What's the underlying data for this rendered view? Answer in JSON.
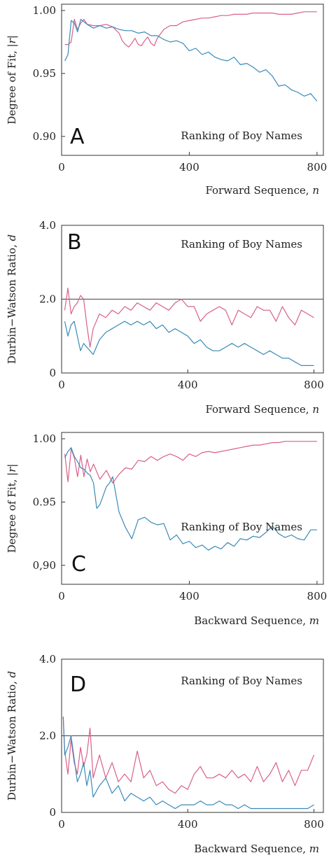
{
  "chart_data": [
    {
      "type": "line",
      "panel_label": "A",
      "annotation": "Ranking of Boy Names",
      "xlabel": "Forward Sequence,",
      "xlabel_var": "n",
      "ylabel": "Degree of Fit,",
      "ylabel_var": "|r|",
      "xlim": [
        0,
        820
      ],
      "ylim": [
        0.885,
        1.005
      ],
      "xticks": [
        0,
        400,
        800
      ],
      "yticks": [
        0.9,
        0.95,
        1.0
      ],
      "ytick_labels": [
        "0.90",
        "0.95",
        "1.00"
      ],
      "reference_line": null,
      "series": [
        {
          "color": "#d9608a",
          "x": [
            10,
            20,
            30,
            40,
            50,
            60,
            70,
            80,
            100,
            120,
            140,
            160,
            180,
            190,
            200,
            210,
            220,
            230,
            240,
            250,
            260,
            270,
            280,
            290,
            300,
            320,
            340,
            360,
            380,
            400,
            420,
            440,
            460,
            480,
            500,
            520,
            540,
            560,
            580,
            600,
            620,
            640,
            660,
            680,
            700,
            720,
            740,
            760,
            780,
            800
          ],
          "y": [
            0.973,
            0.973,
            0.975,
            0.993,
            0.985,
            0.99,
            0.993,
            0.989,
            0.988,
            0.988,
            0.989,
            0.987,
            0.982,
            0.976,
            0.973,
            0.971,
            0.974,
            0.978,
            0.973,
            0.972,
            0.976,
            0.979,
            0.974,
            0.972,
            0.978,
            0.985,
            0.988,
            0.988,
            0.991,
            0.992,
            0.993,
            0.994,
            0.994,
            0.995,
            0.996,
            0.996,
            0.997,
            0.997,
            0.997,
            0.998,
            0.998,
            0.998,
            0.998,
            0.997,
            0.997,
            0.997,
            0.998,
            0.999,
            0.999,
            0.999
          ]
        },
        {
          "color": "#3a8ab8",
          "x": [
            10,
            20,
            30,
            40,
            50,
            60,
            70,
            80,
            100,
            120,
            140,
            160,
            180,
            200,
            220,
            240,
            260,
            280,
            300,
            320,
            340,
            360,
            380,
            400,
            420,
            440,
            460,
            480,
            500,
            520,
            540,
            560,
            580,
            600,
            620,
            640,
            660,
            680,
            700,
            720,
            740,
            760,
            780,
            800
          ],
          "y": [
            0.96,
            0.965,
            0.992,
            0.99,
            0.983,
            0.993,
            0.991,
            0.989,
            0.986,
            0.988,
            0.986,
            0.987,
            0.985,
            0.984,
            0.984,
            0.982,
            0.983,
            0.98,
            0.98,
            0.977,
            0.975,
            0.976,
            0.974,
            0.968,
            0.97,
            0.965,
            0.967,
            0.963,
            0.961,
            0.96,
            0.963,
            0.957,
            0.958,
            0.955,
            0.951,
            0.953,
            0.948,
            0.94,
            0.941,
            0.937,
            0.935,
            0.932,
            0.934,
            0.928
          ]
        }
      ]
    },
    {
      "type": "line",
      "panel_label": "B",
      "annotation": "Ranking of Boy Names",
      "xlabel": "Forward Sequence,",
      "xlabel_var": "n",
      "ylabel": "Durbin−Watson Ratio,",
      "ylabel_var": "d",
      "xlim": [
        0,
        830
      ],
      "ylim": [
        0,
        4.0
      ],
      "xticks": [
        0,
        400,
        800
      ],
      "yticks": [
        0,
        2.0,
        4.0
      ],
      "ytick_labels": [
        "0",
        "2.0",
        "4.0"
      ],
      "reference_line": 2.0,
      "series": [
        {
          "color": "#d9608a",
          "x": [
            10,
            20,
            30,
            40,
            50,
            60,
            70,
            80,
            90,
            100,
            120,
            140,
            160,
            180,
            200,
            220,
            240,
            260,
            280,
            300,
            320,
            340,
            360,
            380,
            400,
            420,
            440,
            460,
            480,
            500,
            520,
            540,
            560,
            580,
            600,
            620,
            640,
            660,
            680,
            700,
            720,
            740,
            760,
            780,
            800
          ],
          "y": [
            1.7,
            2.3,
            1.6,
            1.8,
            1.9,
            2.1,
            2.0,
            1.3,
            0.7,
            1.2,
            1.6,
            1.5,
            1.7,
            1.6,
            1.8,
            1.7,
            1.9,
            1.8,
            1.7,
            1.9,
            1.8,
            1.7,
            1.9,
            2.0,
            1.8,
            1.8,
            1.4,
            1.6,
            1.7,
            1.8,
            1.7,
            1.3,
            1.7,
            1.6,
            1.5,
            1.8,
            1.7,
            1.7,
            1.4,
            1.8,
            1.5,
            1.3,
            1.7,
            1.6,
            1.5
          ]
        },
        {
          "color": "#3a8ab8",
          "x": [
            10,
            20,
            30,
            40,
            50,
            60,
            70,
            80,
            90,
            100,
            120,
            140,
            160,
            180,
            200,
            220,
            240,
            260,
            280,
            300,
            320,
            340,
            360,
            380,
            400,
            420,
            440,
            460,
            480,
            500,
            520,
            540,
            560,
            580,
            600,
            620,
            640,
            660,
            680,
            700,
            720,
            740,
            760,
            780,
            800
          ],
          "y": [
            1.4,
            1.0,
            1.3,
            1.4,
            1.0,
            0.6,
            0.8,
            0.7,
            0.6,
            0.5,
            0.9,
            1.1,
            1.2,
            1.3,
            1.4,
            1.3,
            1.4,
            1.3,
            1.4,
            1.2,
            1.3,
            1.1,
            1.2,
            1.1,
            1.0,
            0.8,
            0.9,
            0.7,
            0.6,
            0.6,
            0.7,
            0.8,
            0.7,
            0.8,
            0.7,
            0.6,
            0.5,
            0.6,
            0.5,
            0.4,
            0.4,
            0.3,
            0.2,
            0.2,
            0.2
          ]
        }
      ]
    },
    {
      "type": "line",
      "panel_label": "C",
      "annotation": "Ranking of Boy Names",
      "xlabel": "Backward Sequence,",
      "xlabel_var": "m",
      "ylabel": "Degree of Fit,",
      "ylabel_var": "|r|",
      "xlim": [
        0,
        820
      ],
      "ylim": [
        0.885,
        1.005
      ],
      "xticks": [
        0,
        400,
        800
      ],
      "yticks": [
        0.9,
        0.95,
        1.0
      ],
      "ytick_labels": [
        "0,90",
        "0.95",
        "1.00"
      ],
      "reference_line": null,
      "series": [
        {
          "color": "#d9608a",
          "x": [
            10,
            20,
            30,
            40,
            50,
            60,
            70,
            80,
            90,
            100,
            120,
            140,
            160,
            180,
            200,
            220,
            240,
            260,
            280,
            300,
            320,
            340,
            360,
            380,
            400,
            420,
            440,
            460,
            480,
            500,
            520,
            540,
            560,
            580,
            600,
            620,
            640,
            660,
            680,
            700,
            720,
            740,
            760,
            780,
            800
          ],
          "y": [
            0.988,
            0.966,
            0.992,
            0.985,
            0.97,
            0.987,
            0.97,
            0.984,
            0.974,
            0.98,
            0.968,
            0.975,
            0.965,
            0.972,
            0.977,
            0.976,
            0.983,
            0.982,
            0.986,
            0.983,
            0.986,
            0.988,
            0.986,
            0.983,
            0.988,
            0.986,
            0.989,
            0.99,
            0.989,
            0.99,
            0.991,
            0.992,
            0.993,
            0.994,
            0.995,
            0.995,
            0.996,
            0.997,
            0.997,
            0.998,
            0.998,
            0.998,
            0.998,
            0.998,
            0.998
          ]
        },
        {
          "color": "#3a8ab8",
          "x": [
            10,
            20,
            30,
            40,
            50,
            60,
            70,
            80,
            90,
            100,
            110,
            120,
            140,
            150,
            160,
            180,
            200,
            220,
            240,
            260,
            280,
            300,
            320,
            340,
            360,
            380,
            400,
            420,
            440,
            460,
            480,
            500,
            520,
            540,
            560,
            580,
            600,
            620,
            640,
            660,
            680,
            700,
            720,
            740,
            760,
            780,
            800
          ],
          "y": [
            0.985,
            0.99,
            0.993,
            0.986,
            0.982,
            0.977,
            0.976,
            0.973,
            0.971,
            0.965,
            0.945,
            0.948,
            0.962,
            0.965,
            0.97,
            0.942,
            0.93,
            0.921,
            0.936,
            0.938,
            0.934,
            0.932,
            0.933,
            0.92,
            0.924,
            0.917,
            0.919,
            0.914,
            0.916,
            0.912,
            0.915,
            0.913,
            0.918,
            0.915,
            0.921,
            0.92,
            0.923,
            0.922,
            0.926,
            0.931,
            0.925,
            0.922,
            0.924,
            0.921,
            0.92,
            0.928,
            0.928
          ]
        }
      ]
    },
    {
      "type": "line",
      "panel_label": "D",
      "annotation": "Ranking of Boy Names",
      "xlabel": "Backward Sequence,",
      "xlabel_var": "m",
      "ylabel": "Durbin−Watson Ratio,",
      "ylabel_var": "d",
      "xlim": [
        0,
        830
      ],
      "ylim": [
        0,
        4.0
      ],
      "xticks": [
        0,
        400,
        800
      ],
      "yticks": [
        0,
        2.0,
        4.0
      ],
      "ytick_labels": [
        "0",
        "2.0",
        "4.0"
      ],
      "reference_line": 2.0,
      "series": [
        {
          "color": "#d9608a",
          "x": [
            5,
            10,
            20,
            30,
            40,
            50,
            60,
            70,
            80,
            90,
            100,
            120,
            140,
            160,
            180,
            200,
            220,
            240,
            260,
            280,
            300,
            320,
            340,
            360,
            380,
            400,
            420,
            440,
            460,
            480,
            500,
            520,
            540,
            560,
            580,
            600,
            620,
            640,
            660,
            680,
            700,
            720,
            740,
            760,
            780,
            800
          ],
          "y": [
            2.5,
            1.6,
            1.0,
            1.9,
            1.3,
            1.0,
            1.7,
            1.2,
            1.5,
            2.2,
            0.9,
            1.5,
            0.9,
            1.3,
            0.8,
            1.0,
            0.8,
            1.6,
            0.9,
            1.1,
            0.7,
            0.8,
            0.6,
            0.5,
            0.7,
            0.6,
            1.0,
            1.2,
            0.9,
            0.9,
            1.0,
            0.9,
            1.1,
            0.9,
            1.0,
            0.8,
            1.2,
            0.8,
            1.0,
            1.3,
            0.8,
            1.1,
            0.7,
            1.1,
            1.1,
            1.5
          ]
        },
        {
          "color": "#3a8ab8",
          "x": [
            5,
            10,
            20,
            30,
            40,
            50,
            60,
            70,
            80,
            90,
            100,
            120,
            140,
            160,
            180,
            200,
            220,
            240,
            260,
            280,
            300,
            320,
            340,
            360,
            380,
            400,
            420,
            440,
            460,
            480,
            500,
            520,
            540,
            560,
            580,
            600,
            620,
            640,
            660,
            680,
            700,
            720,
            740,
            760,
            780,
            800
          ],
          "y": [
            2.5,
            1.5,
            1.7,
            2.0,
            1.4,
            0.8,
            1.0,
            1.3,
            0.7,
            1.1,
            0.4,
            0.7,
            0.9,
            0.5,
            0.7,
            0.3,
            0.5,
            0.4,
            0.3,
            0.4,
            0.2,
            0.3,
            0.2,
            0.1,
            0.2,
            0.2,
            0.2,
            0.3,
            0.2,
            0.2,
            0.3,
            0.2,
            0.2,
            0.1,
            0.2,
            0.1,
            0.1,
            0.1,
            0.1,
            0.1,
            0.1,
            0.1,
            0.1,
            0.1,
            0.1,
            0.2
          ]
        }
      ]
    }
  ]
}
